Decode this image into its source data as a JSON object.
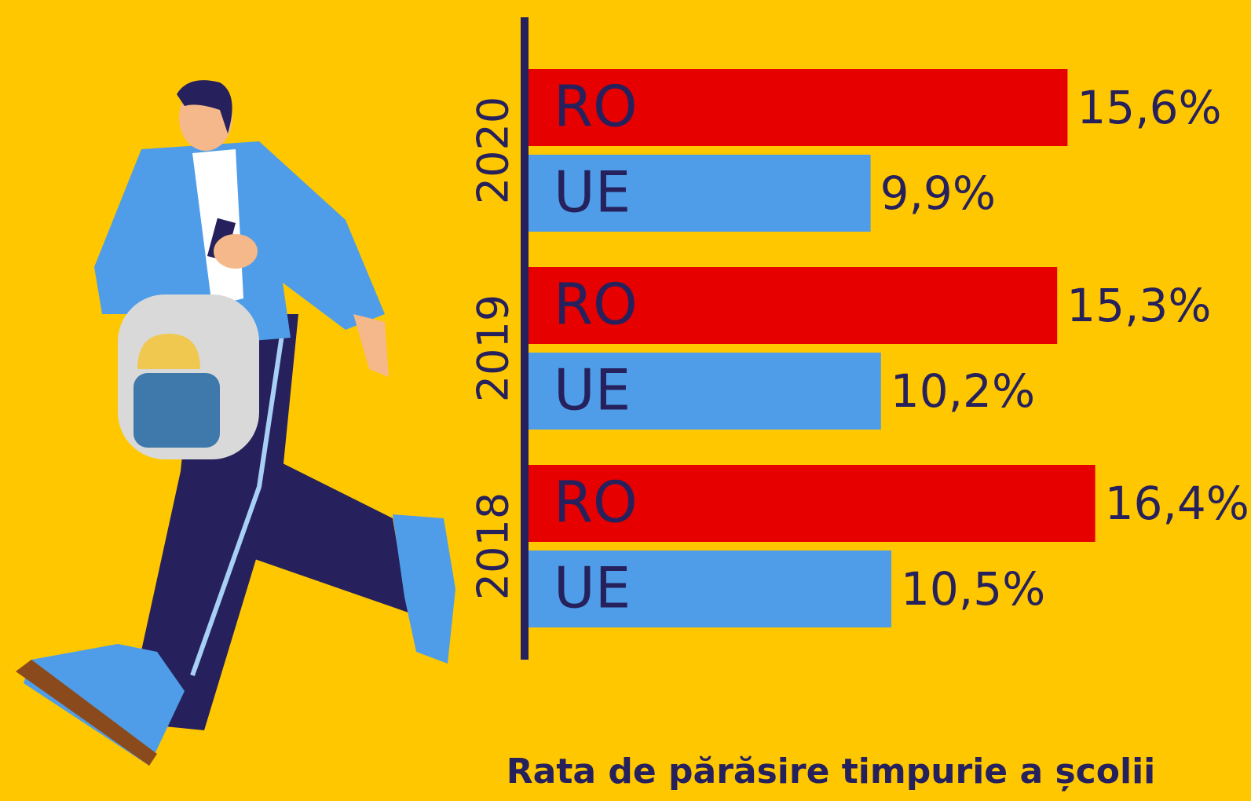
{
  "chart_data": {
    "type": "bar",
    "orientation": "horizontal",
    "title": "Rata de părăsire timpurie a școlii",
    "categories": [
      "2020",
      "2019",
      "2018"
    ],
    "series": [
      {
        "name": "RO",
        "color": "#e60000",
        "values": [
          15.6,
          15.3,
          16.4
        ],
        "value_labels": [
          "15,6%",
          "15,3%",
          "16,4%"
        ]
      },
      {
        "name": "UE",
        "color": "#4f9de8",
        "values": [
          9.9,
          10.2,
          10.5
        ],
        "value_labels": [
          "9,9%",
          "10,2%",
          "10,5%"
        ]
      }
    ]
  }
}
